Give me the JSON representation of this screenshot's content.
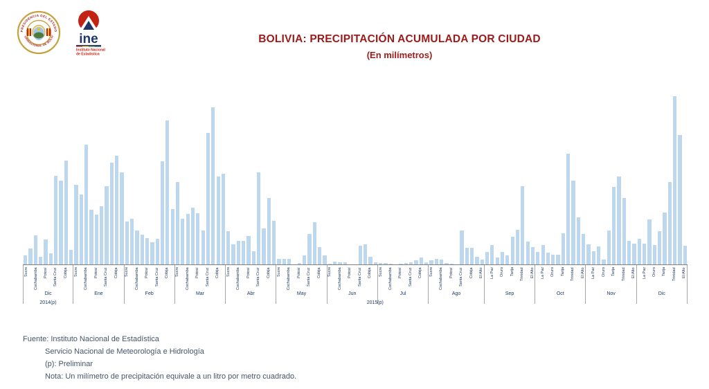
{
  "header": {
    "title": "BOLIVIA: PRECIPITACIÓN ACUMULADA POR CIUDAD",
    "subtitle": "(En milímetros)",
    "logos": {
      "seal_top_text": "PRESIDENCIA DEL ESTADO",
      "seal_bottom_text": "PLURINACIONAL DE BOLIVIA",
      "ine_acronym": "ine",
      "ine_caption_line1": "Instituto Nacional",
      "ine_caption_line2": "de Estadística"
    }
  },
  "chart_data": {
    "type": "bar",
    "title": "BOLIVIA: PRECIPITACIÓN ACUMULADA POR CIUDAD",
    "subtitle": "(En milímetros)",
    "xlabel": "",
    "ylabel": "",
    "legend": "none",
    "grid": false,
    "y_axis": {
      "visible": false,
      "ylim": [
        0,
        250
      ],
      "note": "no numeric scale shown in image; values below are relative bar heights in px, proportional to mm"
    },
    "colors": {
      "bar": "#BDD7EE",
      "title": "#9B1B1B",
      "axis_labels": "#1F3864",
      "axis_line": "#7F7F7F",
      "separators": "#A6A6A6"
    },
    "cities_order": [
      "Sucre",
      "La Paz",
      "Cochabamba",
      "Oruro",
      "Potosí",
      "Tarija",
      "Santa Cruz",
      "Trinidad",
      "Cobija",
      "El Alto"
    ],
    "year_labels": [
      {
        "text": "2014(p)",
        "position_pct": 3.8
      },
      {
        "text": "2015(p)",
        "position_pct": 53.0
      }
    ],
    "months": [
      {
        "name": "Dic",
        "values": [
          13,
          23,
          42,
          11,
          36,
          16,
          128,
          121,
          150,
          21
        ],
        "tick_indices": [
          0,
          2,
          4,
          6,
          8
        ]
      },
      {
        "name": "Ene",
        "values": [
          115,
          101,
          173,
          79,
          72,
          84,
          113,
          147,
          157,
          133
        ],
        "tick_indices": [
          0,
          2,
          4,
          6,
          8
        ]
      },
      {
        "name": "Feb",
        "values": [
          62,
          66,
          49,
          43,
          38,
          32,
          37,
          149,
          208,
          80
        ],
        "tick_indices": [
          0,
          2,
          4,
          6,
          8
        ]
      },
      {
        "name": "Mar",
        "values": [
          119,
          66,
          73,
          82,
          74,
          49,
          190,
          227,
          127,
          131
        ],
        "tick_indices": [
          0,
          2,
          4,
          6,
          8
        ]
      },
      {
        "name": "Abr",
        "values": [
          48,
          29,
          34,
          34,
          41,
          19,
          133,
          52,
          96,
          63
        ],
        "tick_indices": [
          0,
          2,
          4,
          6,
          8
        ]
      },
      {
        "name": "May",
        "values": [
          8,
          8,
          8,
          0,
          2,
          13,
          44,
          61,
          25,
          13
        ],
        "tick_indices": [
          0,
          2,
          4,
          6,
          8
        ]
      },
      {
        "name": "Jun",
        "values": [
          1,
          4,
          3,
          3,
          0,
          0,
          27,
          29,
          11,
          3
        ],
        "tick_indices": [
          0,
          2,
          4,
          6,
          8
        ]
      },
      {
        "name": "Jul",
        "values": [
          2,
          2,
          1,
          0,
          1,
          2,
          3,
          6,
          10,
          3
        ],
        "tick_indices": [
          0,
          2,
          4,
          6,
          8
        ]
      },
      {
        "name": "Ago",
        "bar_labels": [
          "Sucre",
          "La Paz",
          "Cochabamba",
          "Oruro",
          "Potosí",
          "Tarija",
          "Santa Cruz",
          "Trinidad",
          "Cobija",
          "",
          "El Alto"
        ],
        "values": [
          6,
          8,
          7,
          2,
          1,
          0,
          49,
          24,
          24,
          11,
          7
        ],
        "tick_indices": [
          0,
          2,
          4,
          6,
          8,
          10
        ]
      },
      {
        "name": "Sep",
        "values": [
          18,
          28,
          10,
          18,
          13,
          40,
          50,
          113,
          33,
          25
        ],
        "tick_indices": [
          1,
          3,
          5,
          7,
          9
        ]
      },
      {
        "name": "Oct",
        "values": [
          18,
          28,
          17,
          14,
          14,
          45,
          160,
          121,
          68,
          44
        ],
        "tick_indices": [
          1,
          3,
          5,
          7,
          9
        ]
      },
      {
        "name": "Nov",
        "values": [
          29,
          19,
          26,
          7,
          49,
          112,
          127,
          96,
          34,
          30
        ],
        "tick_indices": [
          1,
          3,
          5,
          7,
          9
        ]
      },
      {
        "name": "Dic",
        "values": [
          37,
          30,
          65,
          28,
          48,
          75,
          119,
          243,
          187,
          27
        ],
        "tick_indices": [
          1,
          3,
          5,
          7,
          9
        ]
      }
    ]
  },
  "footer": {
    "source_line1": "Fuente: Instituto Nacional de Estadística",
    "source_line2": "Servicio Nacional de Meteorología e Hidrología",
    "preliminary": "(p): Preliminar",
    "note": "Nota: Un milímetro de precipitación equivale a un litro por metro cuadrado."
  }
}
